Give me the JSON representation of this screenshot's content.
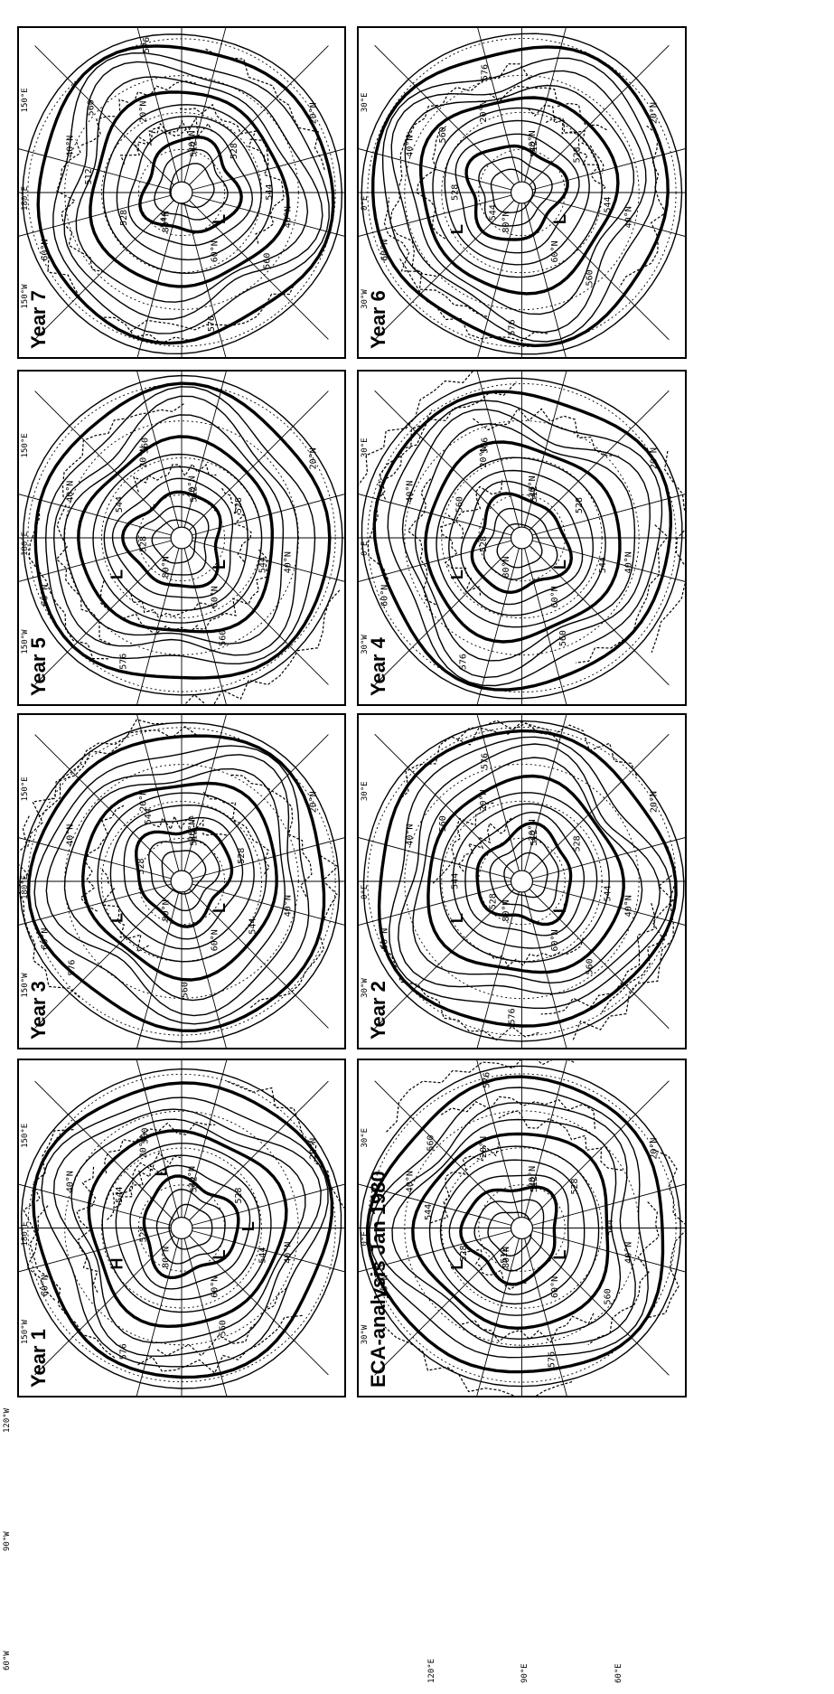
{
  "side_labels": {
    "left": [
      "120°W",
      "90°W",
      "60°W"
    ],
    "right": [
      "120°E",
      "90°E",
      "60°E"
    ]
  },
  "panels": [
    {
      "title": "Year 7",
      "labels": [
        "512",
        "528",
        "544",
        "560",
        "576",
        "544",
        "528",
        "512",
        "560",
        "576"
      ],
      "lat_labels": [
        "20°N",
        "40°N",
        "60°N",
        "80°N",
        "60°N",
        "40°N",
        "20°N",
        "20°N"
      ],
      "lon_labels": [
        "150°W",
        "180°E",
        "150°E"
      ],
      "centers": [
        "L"
      ]
    },
    {
      "title": "Year 6",
      "labels": [
        "512",
        "528",
        "544",
        "560",
        "576",
        "544",
        "528",
        "560",
        "576"
      ],
      "lat_labels": [
        "20°N",
        "40°N",
        "60°N",
        "80°N",
        "60°N",
        "40°N",
        "20°N",
        "20°N"
      ],
      "lon_labels": [
        "30°W",
        "0°E",
        "30°E"
      ],
      "centers": [
        "L",
        "L"
      ]
    },
    {
      "title": "Year 5",
      "labels": [
        "512",
        "528",
        "544",
        "560",
        "576",
        "528",
        "544",
        "560"
      ],
      "lat_labels": [
        "20°N",
        "40°N",
        "60°N",
        "80°N",
        "60°N",
        "40°N",
        "20°N",
        "20°N"
      ],
      "lon_labels": [
        "150°W",
        "180°E",
        "150°E"
      ],
      "centers": [
        "L",
        "L"
      ]
    },
    {
      "title": "Year 4",
      "labels": [
        "512",
        "528",
        "544",
        "560",
        "576",
        "528",
        "560",
        "576"
      ],
      "lat_labels": [
        "20°N",
        "40°N",
        "60°N",
        "80°N",
        "60°N",
        "40°N",
        "20°N",
        "20°N"
      ],
      "lon_labels": [
        "30°W",
        "0°E",
        "30°E"
      ],
      "centers": [
        "L",
        "L"
      ]
    },
    {
      "title": "Year 3",
      "labels": [
        "512",
        "528",
        "544",
        "560",
        "576",
        "528",
        "544"
      ],
      "lat_labels": [
        "20°N",
        "40°N",
        "60°N",
        "80°N",
        "60°N",
        "40°N",
        "20°N",
        "20°N"
      ],
      "lon_labels": [
        "150°W",
        "180°E",
        "150°E"
      ],
      "centers": [
        "L",
        "L"
      ]
    },
    {
      "title": "Year 2",
      "labels": [
        "512",
        "528",
        "544",
        "560",
        "576",
        "528",
        "544",
        "560",
        "576"
      ],
      "lat_labels": [
        "20°N",
        "40°N",
        "60°N",
        "80°N",
        "60°N",
        "40°N",
        "20°N",
        "20°N"
      ],
      "lon_labels": [
        "30°W",
        "0°E",
        "30°E"
      ],
      "centers": [
        "L",
        "L"
      ]
    },
    {
      "title": "Year 1",
      "labels": [
        "512",
        "528",
        "544",
        "560",
        "576",
        "528",
        "544",
        "560"
      ],
      "lat_labels": [
        "20°N",
        "40°N",
        "60°N",
        "80°N",
        "60°N",
        "40°N",
        "20°N",
        "20°N"
      ],
      "lon_labels": [
        "150°W",
        "180°E",
        "150°E"
      ],
      "centers": [
        "L",
        "H",
        "L",
        "L"
      ]
    },
    {
      "title": "ECA-analysis Jan 1980",
      "labels": [
        "512",
        "528",
        "544",
        "560",
        "576",
        "512",
        "528",
        "544",
        "560",
        "576"
      ],
      "lat_labels": [
        "20°N",
        "40°N",
        "60°N",
        "80°N",
        "60°N",
        "40°N",
        "20°N",
        "20°N"
      ],
      "lon_labels": [
        "30°W",
        "0°E",
        "30°E"
      ],
      "centers": [
        "L",
        "L"
      ]
    }
  ]
}
